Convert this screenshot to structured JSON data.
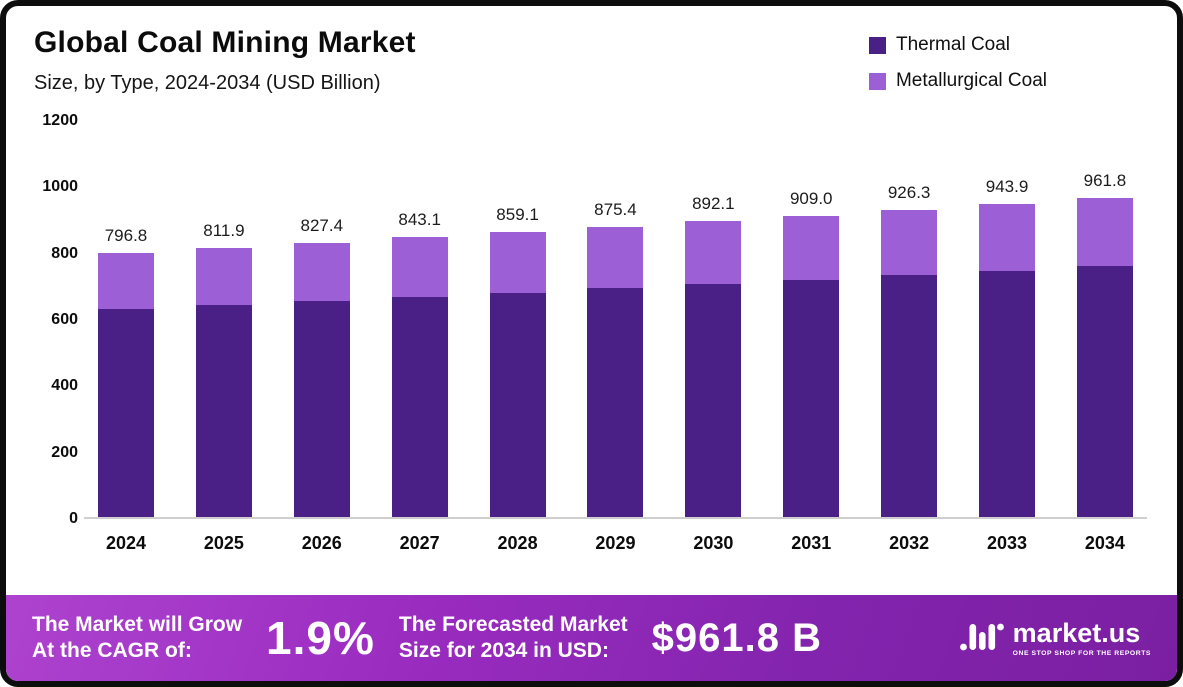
{
  "header": {
    "title": "Global Coal Mining Market",
    "subtitle": "Size, by Type, 2024-2034 (USD Billion)"
  },
  "legend": [
    {
      "label": "Thermal Coal",
      "color": "#4a1f86"
    },
    {
      "label": "Metallurgical Coal",
      "color": "#9d5fd6"
    }
  ],
  "chart_data": {
    "type": "bar",
    "stacked": true,
    "title": "Global Coal Mining Market",
    "subtitle": "Size, by Type, 2024-2034 (USD Billion)",
    "categories": [
      "2024",
      "2025",
      "2026",
      "2027",
      "2028",
      "2029",
      "2030",
      "2031",
      "2032",
      "2033",
      "2034"
    ],
    "series": [
      {
        "name": "Thermal Coal",
        "color": "#4a1f86",
        "values": [
          627,
          639,
          651,
          663,
          676,
          689,
          702,
          715,
          729,
          743,
          757
        ]
      },
      {
        "name": "Metallurgical Coal",
        "color": "#9d5fd6",
        "values": [
          169.8,
          172.9,
          176.4,
          180.1,
          183.1,
          186.4,
          190.1,
          194.0,
          197.3,
          200.9,
          204.8
        ]
      }
    ],
    "totals": [
      796.8,
      811.9,
      827.4,
      843.1,
      859.1,
      875.4,
      892.1,
      909.0,
      926.3,
      943.9,
      961.8
    ],
    "total_labels": [
      "796.8",
      "811.9",
      "827.4",
      "843.1",
      "859.1",
      "875.4",
      "892.1",
      "909.0",
      "926.3",
      "943.9",
      "961.8"
    ],
    "xlabel": "",
    "ylabel": "",
    "ylim": [
      0,
      1200
    ],
    "yticks": [
      0,
      200,
      400,
      600,
      800,
      1000,
      1200
    ],
    "grid": false,
    "legend_position": "top-right"
  },
  "banner": {
    "growth_label_line1": "The Market will Grow",
    "growth_label_line2": "At the CAGR of:",
    "cagr_value": "1.9%",
    "forecast_label_line1": "The Forecasted Market",
    "forecast_label_line2": "Size for 2034 in USD:",
    "forecast_value": "$961.8 B",
    "brand_name": "market.us",
    "brand_tagline": "ONE STOP SHOP FOR THE REPORTS"
  }
}
